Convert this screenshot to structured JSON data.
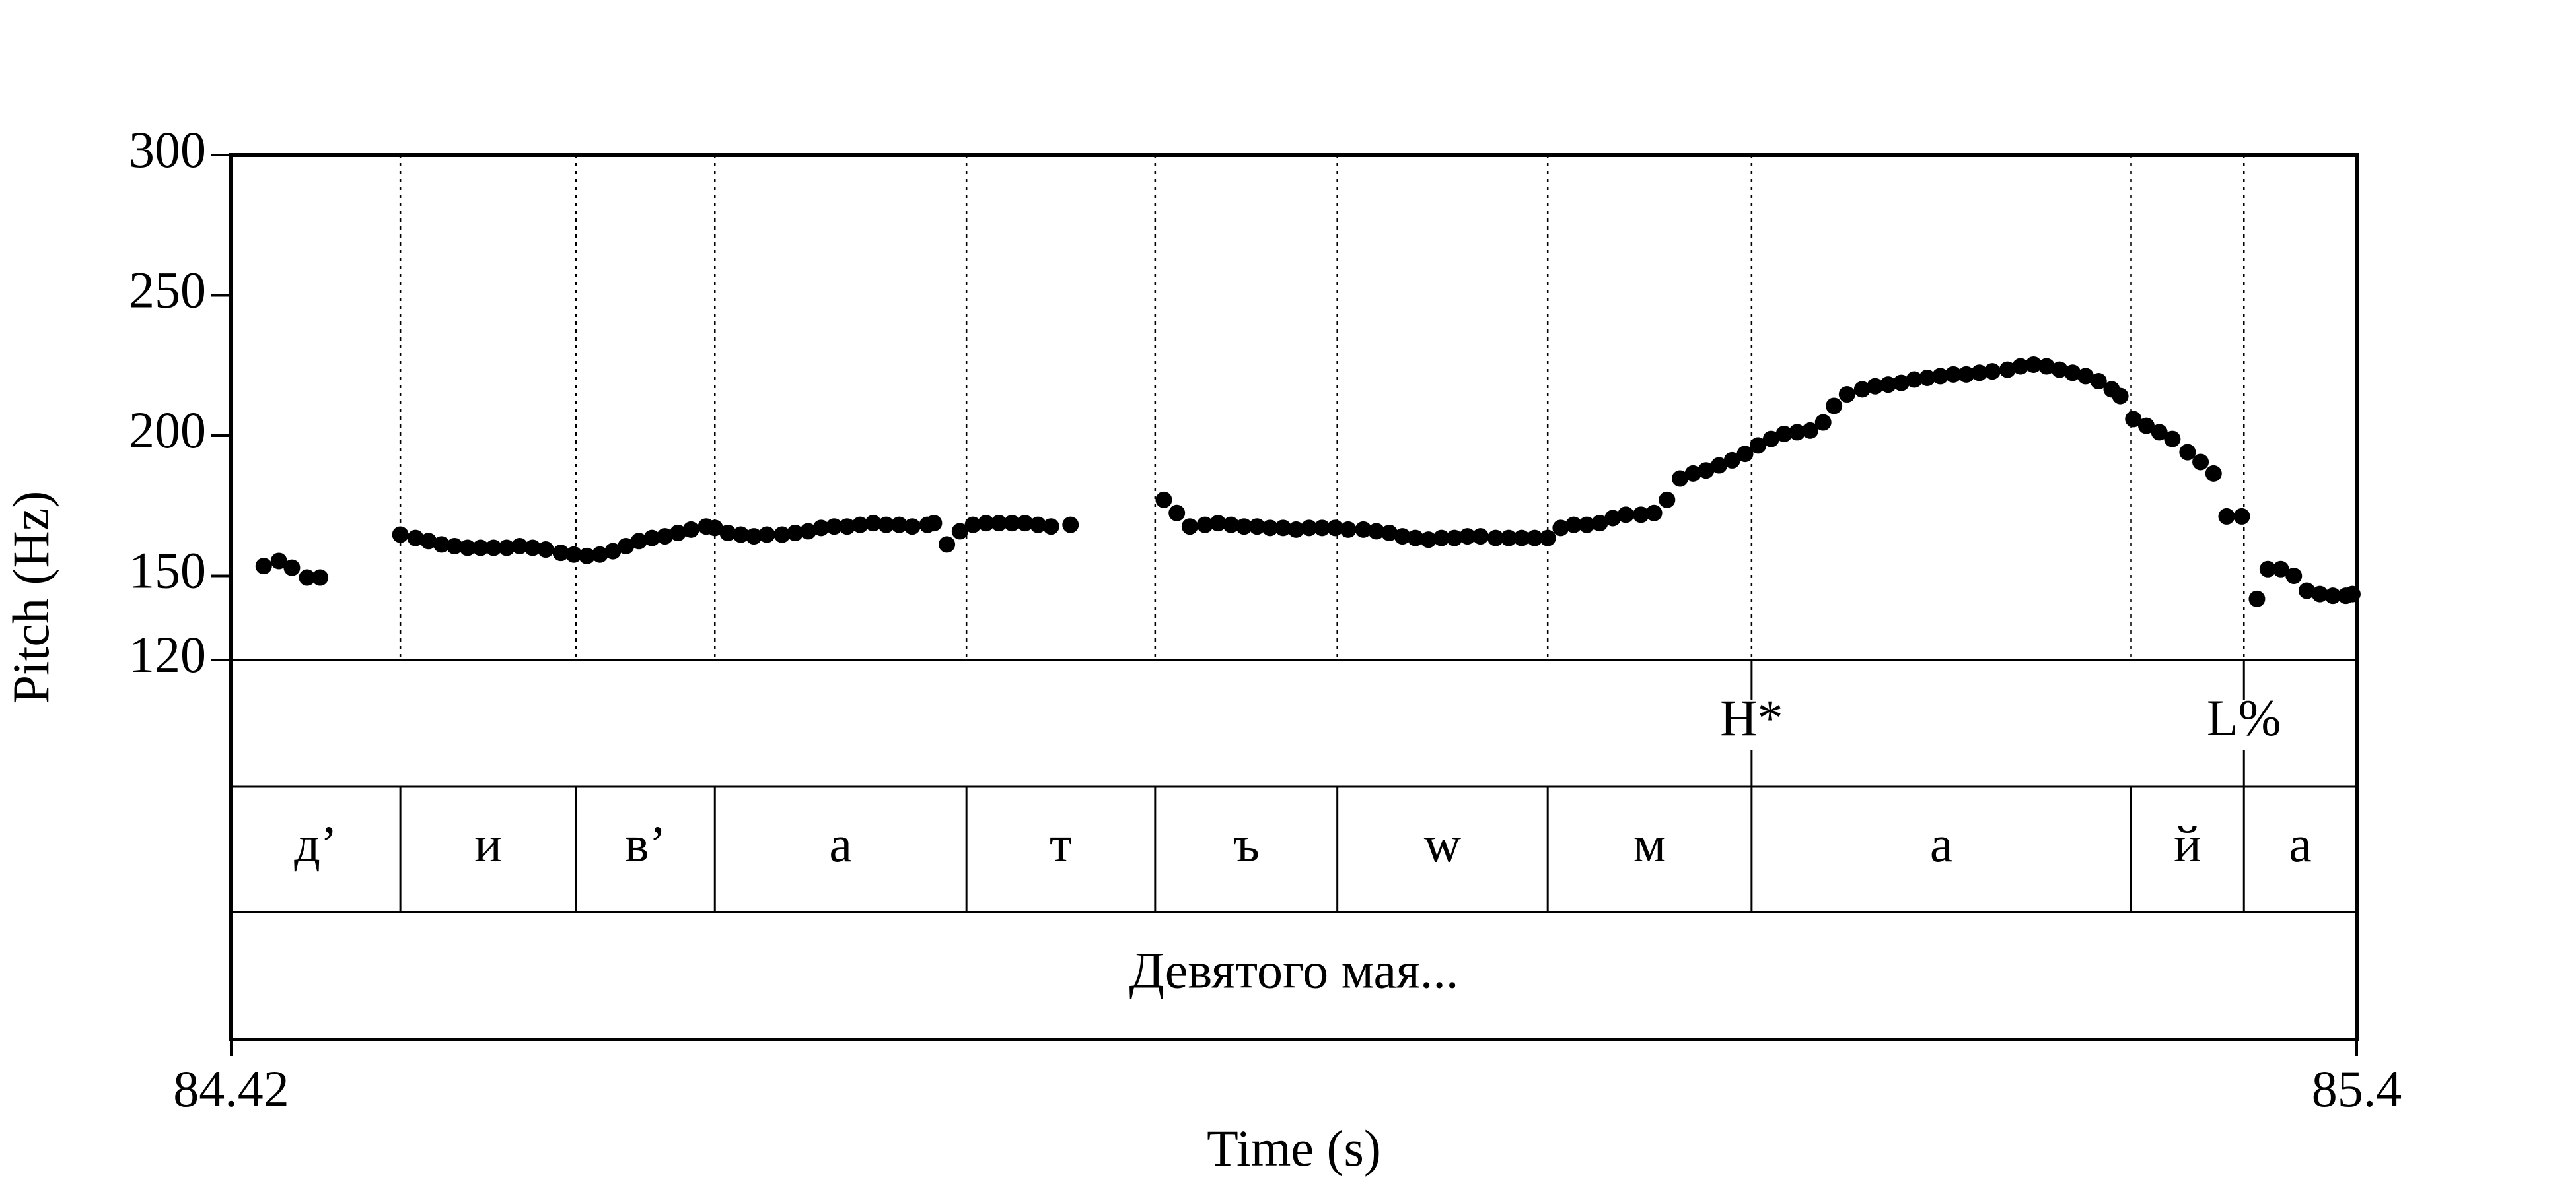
{
  "chart_data": {
    "type": "scatter",
    "ylabel": "Pitch (Hz)",
    "xlabel": "Time (s)",
    "xlim": [
      84.42,
      85.4
    ],
    "xticks": [
      84.42,
      85.4
    ],
    "ylim": [
      120,
      300
    ],
    "yticks": [
      120,
      150,
      200,
      250,
      300
    ],
    "color": "#000000",
    "x": [
      84.435,
      84.442,
      84.448,
      84.455,
      84.461,
      84.498,
      84.505,
      84.511,
      84.517,
      84.523,
      84.529,
      84.535,
      84.541,
      84.547,
      84.553,
      84.559,
      84.565,
      84.572,
      84.578,
      84.584,
      84.59,
      84.596,
      84.602,
      84.608,
      84.614,
      84.62,
      84.626,
      84.632,
      84.639,
      84.643,
      84.649,
      84.655,
      84.661,
      84.667,
      84.674,
      84.68,
      84.686,
      84.692,
      84.698,
      84.704,
      84.71,
      84.716,
      84.722,
      84.728,
      84.734,
      84.741,
      84.744,
      84.75,
      84.756,
      84.762,
      84.768,
      84.774,
      84.78,
      84.786,
      84.792,
      84.798,
      84.807,
      84.85,
      84.856,
      84.862,
      84.869,
      84.875,
      84.881,
      84.887,
      84.893,
      84.899,
      84.905,
      84.911,
      84.917,
      84.923,
      84.929,
      84.935,
      84.942,
      84.948,
      84.954,
      84.96,
      84.966,
      84.972,
      84.978,
      84.984,
      84.99,
      84.996,
      85.003,
      85.009,
      85.015,
      85.021,
      85.027,
      85.033,
      85.039,
      85.045,
      85.051,
      85.057,
      85.063,
      85.07,
      85.076,
      85.082,
      85.088,
      85.094,
      85.1,
      85.106,
      85.112,
      85.118,
      85.124,
      85.13,
      85.136,
      85.142,
      85.148,
      85.154,
      85.159,
      85.165,
      85.172,
      85.178,
      85.184,
      85.19,
      85.196,
      85.202,
      85.208,
      85.214,
      85.22,
      85.226,
      85.232,
      85.239,
      85.245,
      85.251,
      85.257,
      85.263,
      85.269,
      85.275,
      85.281,
      85.287,
      85.291,
      85.297,
      85.303,
      85.309,
      85.315,
      85.322,
      85.328,
      85.334,
      85.34,
      85.347,
      85.354,
      85.359,
      85.365,
      85.371,
      85.377,
      85.383,
      85.389,
      85.395,
      85.398
    ],
    "values": [
      153.5,
      155.3,
      152.9,
      149.4,
      149.4,
      164.7,
      163.5,
      162.4,
      161.2,
      160.6,
      160.0,
      160.0,
      160.0,
      160.0,
      160.6,
      160.0,
      159.4,
      158.2,
      157.6,
      157.1,
      157.6,
      158.8,
      160.6,
      162.4,
      163.5,
      164.1,
      165.3,
      166.5,
      167.6,
      167.1,
      165.3,
      164.7,
      164.1,
      164.7,
      164.7,
      165.3,
      165.9,
      167.1,
      167.6,
      167.6,
      168.2,
      168.8,
      168.2,
      168.2,
      167.6,
      168.2,
      168.8,
      161.2,
      165.9,
      168.2,
      168.8,
      168.8,
      168.8,
      168.8,
      168.2,
      167.6,
      168.2,
      177.1,
      172.4,
      167.6,
      168.2,
      168.8,
      168.2,
      167.6,
      167.6,
      167.1,
      167.1,
      166.5,
      167.1,
      167.1,
      167.1,
      166.5,
      166.5,
      165.9,
      165.3,
      164.1,
      163.5,
      162.9,
      163.5,
      163.5,
      164.1,
      164.1,
      163.5,
      163.5,
      163.5,
      163.5,
      163.5,
      167.1,
      168.2,
      168.2,
      168.8,
      170.6,
      171.8,
      171.8,
      172.4,
      177.1,
      184.7,
      186.5,
      187.6,
      189.4,
      191.2,
      193.5,
      196.5,
      198.8,
      200.6,
      201.2,
      201.8,
      204.7,
      210.6,
      214.7,
      216.5,
      217.6,
      218.2,
      218.8,
      220.0,
      220.6,
      221.2,
      221.8,
      221.8,
      222.4,
      222.9,
      223.5,
      224.7,
      225.3,
      224.7,
      223.5,
      222.4,
      221.2,
      219.4,
      216.5,
      214.1,
      205.9,
      203.5,
      201.2,
      198.8,
      194.1,
      190.6,
      186.5,
      171.2,
      171.2,
      141.8,
      152.4,
      152.4,
      150.0,
      144.7,
      143.5,
      142.9,
      142.9,
      143.5
    ],
    "tiers": [
      {
        "points": [
          85.121,
          85.348
        ],
        "labels": [
          "H*",
          "L%"
        ]
      },
      {
        "boundaries": [
          84.498,
          84.579,
          84.643,
          84.759,
          84.846,
          84.93,
          85.027,
          85.121,
          85.296,
          85.348
        ],
        "labels": [
          "д’",
          "и",
          "в’",
          "а",
          "т",
          "ъ",
          "w",
          "м",
          "а",
          "й",
          "а"
        ]
      },
      {
        "labels": [
          "Девятого мая..."
        ]
      }
    ]
  }
}
